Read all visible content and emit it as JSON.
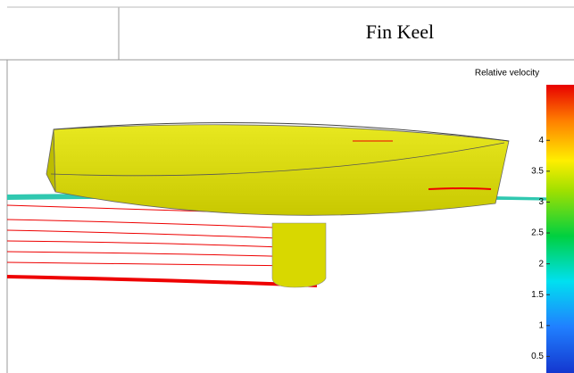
{
  "header": {
    "title": "Fin Keel"
  },
  "colorbar": {
    "label": "Relative velocity",
    "range": [
      0,
      4.9
    ],
    "ticks": [
      0.5,
      1,
      1.5,
      2,
      2.5,
      3,
      3.5,
      4
    ]
  }
}
